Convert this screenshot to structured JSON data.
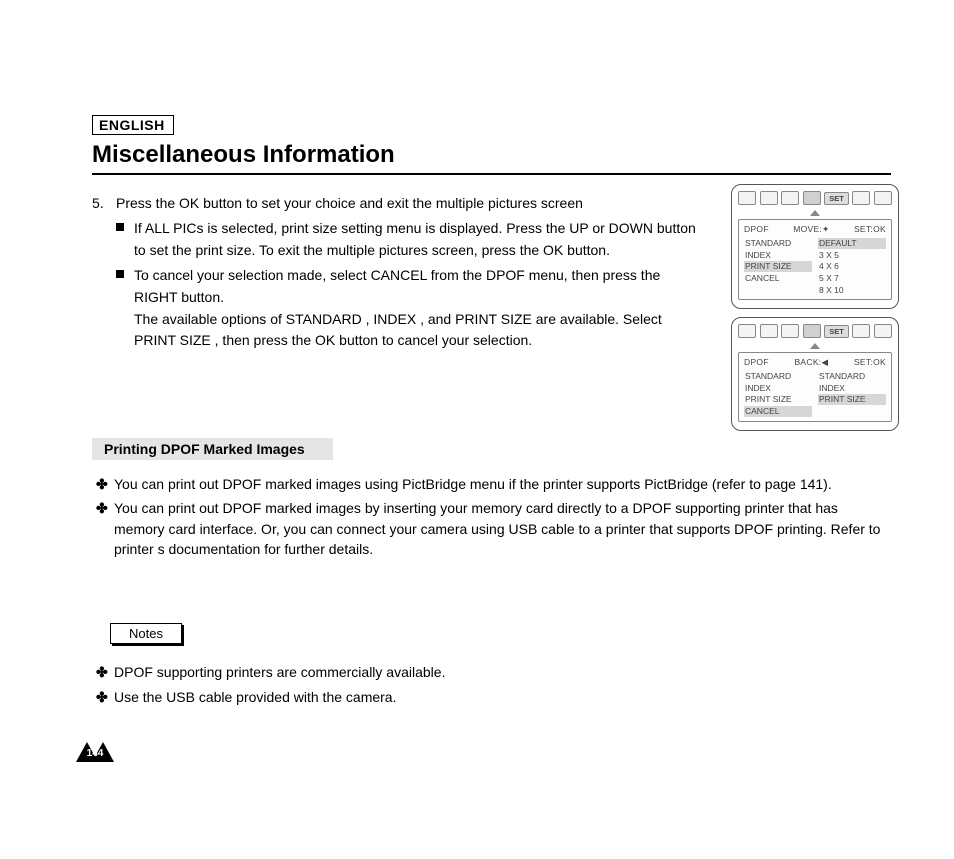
{
  "language_label": "ENGLISH",
  "title": "Miscellaneous Information",
  "step_number": "5.",
  "step_text": "Press the OK button to set your choice and exit the multiple pictures screen",
  "sub1": "If  ALL PICs  is selected, print size setting menu is displayed. Press the UP or DOWN button to set the print size. To exit the multiple pictures screen, press the OK button.",
  "sub2": "To cancel your selection made, select  CANCEL  from the DPOF menu, then press the RIGHT button.",
  "sub2b": "The available options of  STANDARD ,  INDEX , and  PRINT SIZE  are available. Select  PRINT SIZE , then press the OK button to cancel your selection.",
  "section_heading": "Printing DPOF Marked Images",
  "sec_bul1": "You can print out DPOF marked images using PictBridge menu if the printer supports PictBridge (refer to page 141).",
  "sec_bul2": "You can print out DPOF marked images by inserting your memory card directly to a DPOF supporting printer that has memory card interface. Or, you can connect your camera using USB cable to a printer that supports DPOF printing. Refer to printer s documentation for further details.",
  "notes_label": "Notes",
  "note1": "DPOF supporting printers are commercially available.",
  "note2": "Use the USB cable provided with the camera.",
  "page_number": "144",
  "screen1": {
    "heading_left": "DPOF",
    "heading_mid": "MOVE:",
    "heading_right": "SET:OK",
    "left_items": [
      "STANDARD",
      "INDEX",
      "PRINT SIZE",
      "CANCEL"
    ],
    "right_items": [
      "DEFAULT",
      "3 X 5",
      "4 X 6",
      "5 X 7",
      "8 X 10"
    ],
    "left_hl_index": 2,
    "right_hl_index": 0,
    "set_label": "SET"
  },
  "screen2": {
    "heading_left": "DPOF",
    "heading_mid": "BACK:",
    "heading_right": "SET:OK",
    "left_items": [
      "STANDARD",
      "INDEX",
      "PRINT SIZE",
      "CANCEL"
    ],
    "right_items": [
      "STANDARD",
      "INDEX",
      "PRINT SIZE"
    ],
    "left_hl_index": 3,
    "right_hl_index": 2,
    "set_label": "SET"
  },
  "colors": {
    "highlight_bg": "#d6d6d6",
    "border": "#000000",
    "text": "#000000"
  }
}
